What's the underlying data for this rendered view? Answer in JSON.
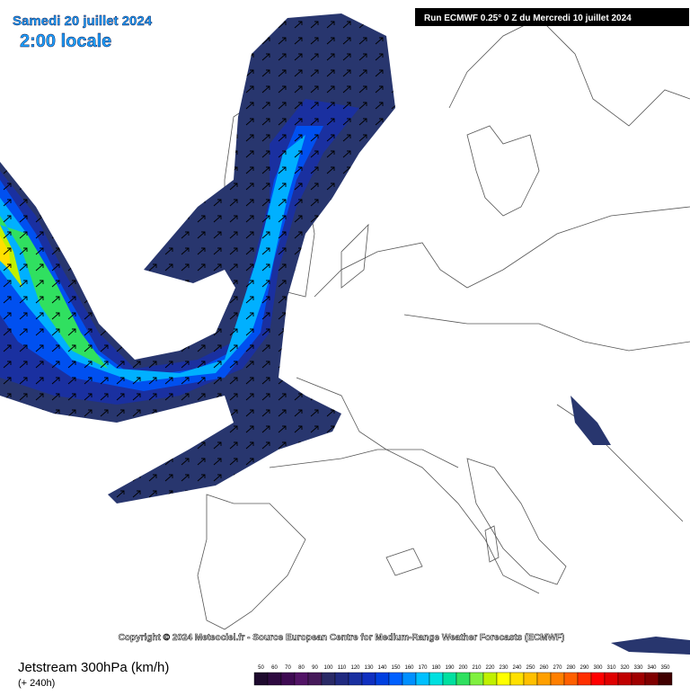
{
  "header": {
    "date": "Samedi 20 juillet 2024",
    "time": "2:00 locale",
    "run": "Run ECMWF 0.25° 0 Z du Mercredi 10 juillet 2024"
  },
  "copyright": "Copyright © 2024 Meteociel.fr - Source European Centre for Medium-Range Weather Forecasts (ECMWF)",
  "footer": {
    "title": "Jetstream 300hPa (km/h)",
    "lead": "(+ 240h)"
  },
  "legend": {
    "ticks": [
      50,
      60,
      70,
      80,
      90,
      100,
      110,
      120,
      130,
      140,
      150,
      160,
      170,
      180,
      190,
      200,
      210,
      220,
      230,
      240,
      250,
      260,
      270,
      280,
      290,
      300,
      310,
      320,
      330,
      340,
      350
    ],
    "colors": [
      "#1e0a2e",
      "#2e0a40",
      "#3e0a52",
      "#521466",
      "#461a5a",
      "#2a2a66",
      "#202a80",
      "#1a30a0",
      "#1030c0",
      "#0040e0",
      "#0060ff",
      "#0090ff",
      "#00c0ff",
      "#00e0e0",
      "#00e0a0",
      "#30e060",
      "#80f040",
      "#c0f000",
      "#ffff00",
      "#ffe000",
      "#ffc000",
      "#ffa000",
      "#ff8000",
      "#ff6000",
      "#ff3000",
      "#ff0000",
      "#e00000",
      "#c00000",
      "#a00000",
      "#800000",
      "#400000"
    ]
  }
}
